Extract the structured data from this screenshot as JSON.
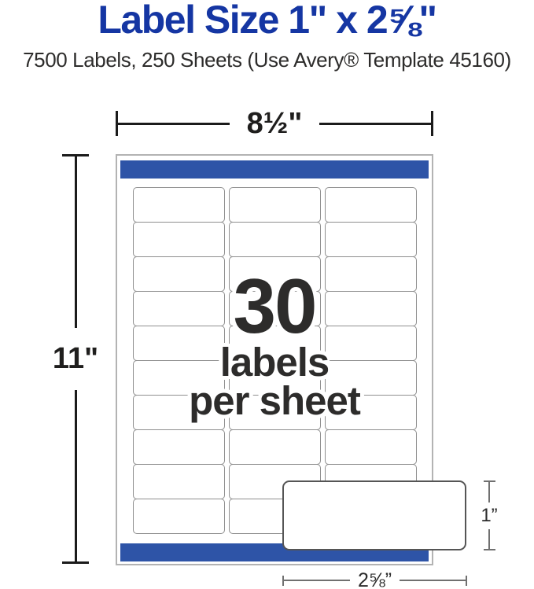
{
  "title": "Label Size 1\" x 2⅝\"",
  "subtitle": "7500 Labels, 250 Sheets (Use Avery® Template 45160)",
  "colors": {
    "title_blue": "#1536a3",
    "bar_blue": "#2e54a7",
    "caption_dark": "#2d2c2b"
  },
  "sheet": {
    "width_dimension": "8½\"",
    "height_dimension": "11\"",
    "grid": {
      "rows": 10,
      "columns": 3
    },
    "caption": {
      "count": "30",
      "line2": "labels",
      "line3": "per sheet"
    }
  },
  "callout_label": {
    "height_dimension": "1”",
    "width_dimension": "2⅝”"
  }
}
